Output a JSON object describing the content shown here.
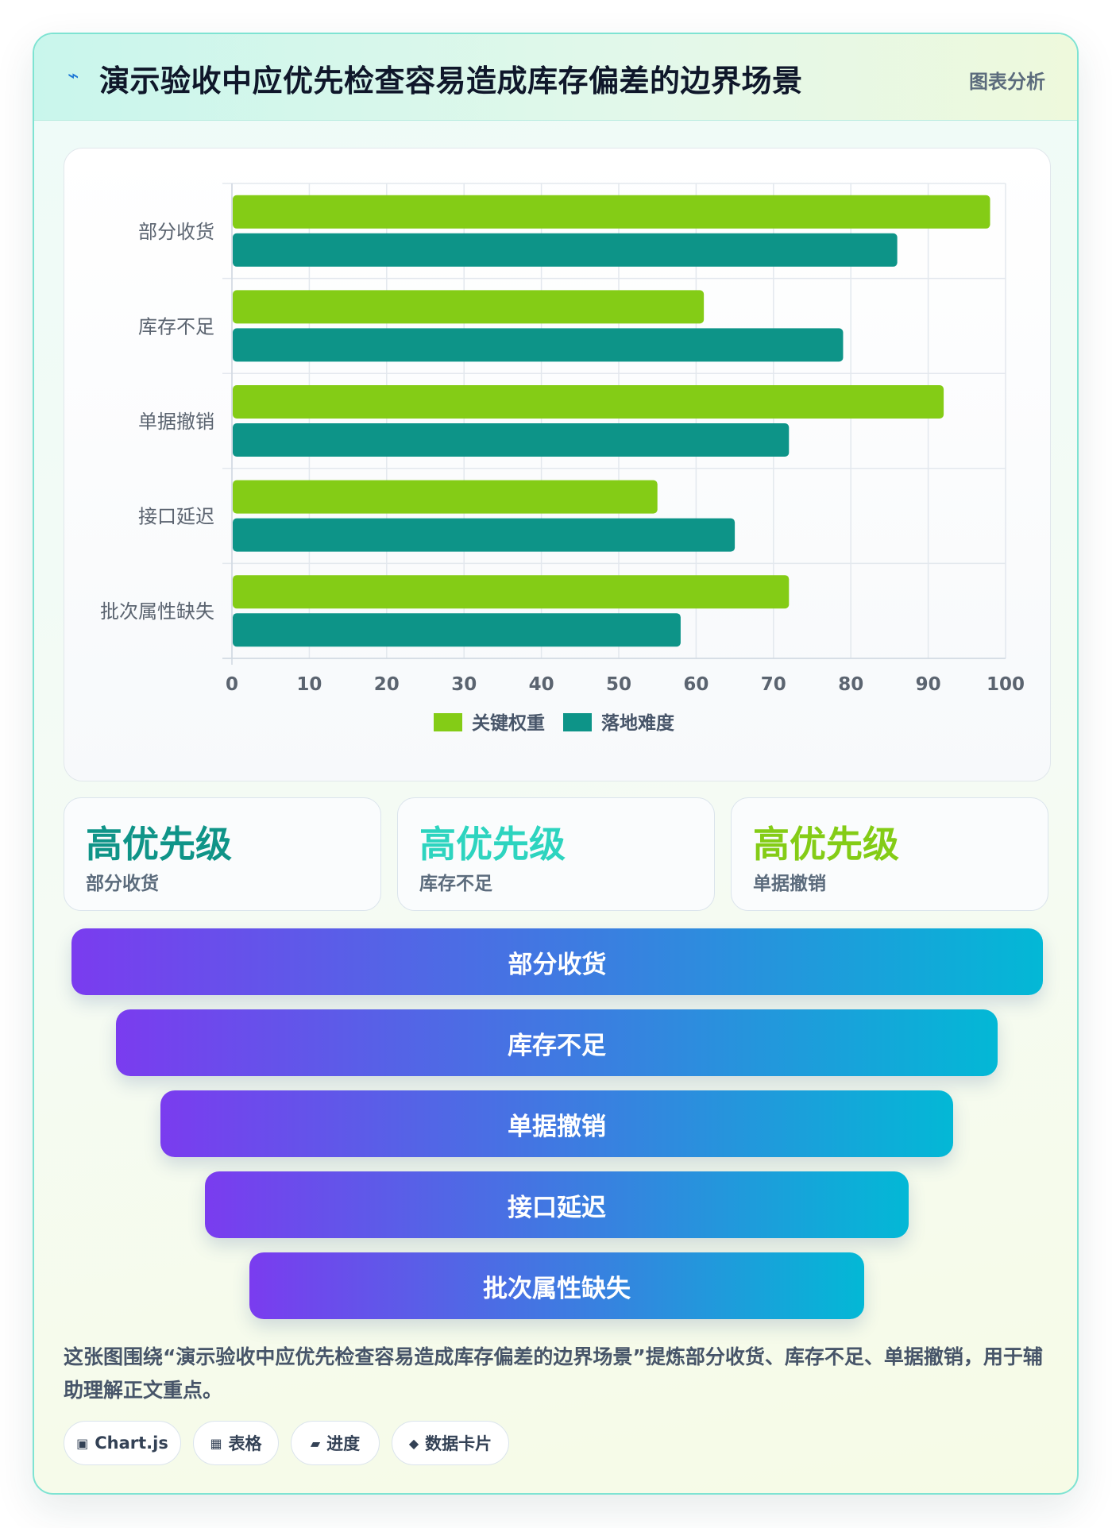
{
  "header": {
    "icon": "lightning-icon",
    "title": "演示验收中应优先检查容易造成库存偏差的边界场景",
    "tag": "图表分析"
  },
  "chart_data": {
    "type": "bar",
    "orientation": "horizontal",
    "categories": [
      "部分收货",
      "库存不足",
      "单据撤销",
      "接口延迟",
      "批次属性缺失"
    ],
    "series": [
      {
        "name": "关键权重",
        "color": "#84cc16",
        "values": [
          98,
          61,
          92,
          55,
          72
        ]
      },
      {
        "name": "落地难度",
        "color": "#0d9488",
        "values": [
          86,
          79,
          72,
          65,
          58
        ]
      }
    ],
    "xlim": [
      0,
      100
    ],
    "xticks": [
      0,
      10,
      20,
      30,
      40,
      50,
      60,
      70,
      80,
      90,
      100
    ],
    "grid": true,
    "legend_position": "bottom-center"
  },
  "stats": [
    {
      "value": "高优先级",
      "label": "部分收货",
      "color": "#0f9488"
    },
    {
      "value": "高优先级",
      "label": "库存不足",
      "color": "#2dd4bf"
    },
    {
      "value": "高优先级",
      "label": "单据撤销",
      "color": "#84cc16"
    }
  ],
  "funnel": [
    "部分收货",
    "库存不足",
    "单据撤销",
    "接口延迟",
    "批次属性缺失"
  ],
  "summary": "这张图围绕“演示验收中应优先检查容易造成库存偏差的边界场景”提炼部分收货、库存不足、单据撤销，用于辅助理解正文重点。",
  "chips": [
    {
      "icon": "▣",
      "icon_name": "chart-icon",
      "label": "Chart.js"
    },
    {
      "icon": "▦",
      "icon_name": "table-icon",
      "label": "表格"
    },
    {
      "icon": "▰",
      "icon_name": "progress-icon",
      "label": "进度"
    },
    {
      "icon": "◆",
      "icon_name": "data-card-icon",
      "label": "数据卡片"
    }
  ]
}
